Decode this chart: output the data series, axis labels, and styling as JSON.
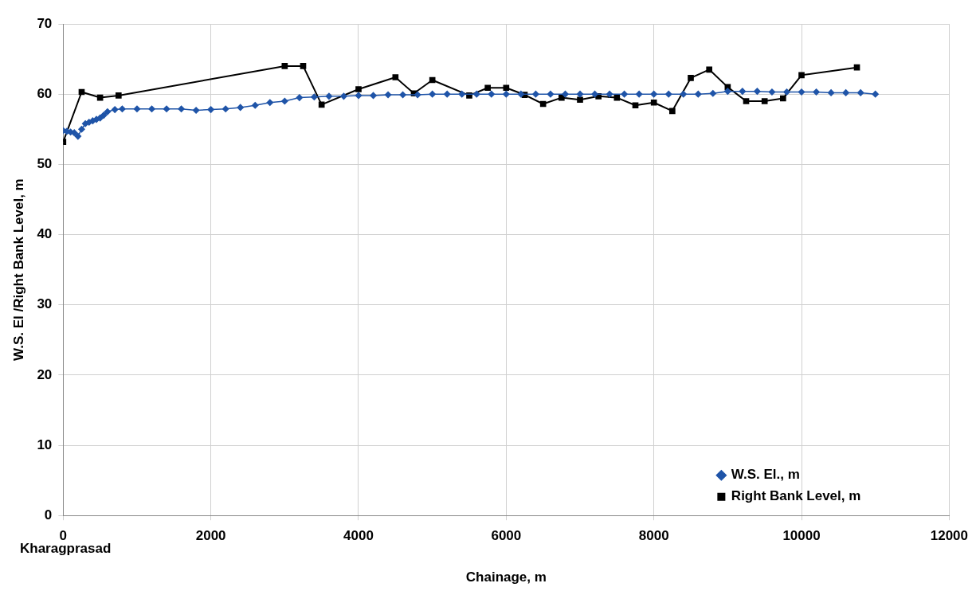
{
  "chart_data": {
    "type": "line",
    "xlabel": "Chainage, m",
    "ylabel": "W.S. El /Right Bank Level, m",
    "xlim": [
      0,
      12000
    ],
    "ylim": [
      0,
      70
    ],
    "xticks": [
      0,
      2000,
      4000,
      6000,
      8000,
      10000,
      12000
    ],
    "yticks": [
      0,
      10,
      20,
      30,
      40,
      50,
      60,
      70
    ],
    "grid": true,
    "legend": "bottom right",
    "annotations": [
      "Kharagprasad"
    ],
    "series": [
      {
        "name": "W.S. El., m",
        "color": "#1f54a8",
        "marker": "diamond",
        "x": [
          0,
          50,
          100,
          150,
          200,
          250,
          300,
          350,
          400,
          450,
          500,
          550,
          600,
          700,
          800,
          1000,
          1200,
          1400,
          1600,
          1800,
          2000,
          2200,
          2400,
          2600,
          2800,
          3000,
          3200,
          3400,
          3600,
          3800,
          4000,
          4200,
          4400,
          4600,
          4800,
          5000,
          5200,
          5400,
          5600,
          5800,
          6000,
          6200,
          6400,
          6600,
          6800,
          7000,
          7200,
          7400,
          7600,
          7800,
          8000,
          8200,
          8400,
          8600,
          8800,
          9000,
          9200,
          9400,
          9600,
          9800,
          10000,
          10200,
          10400,
          10600,
          10800,
          11000
        ],
        "values": [
          54.8,
          54.7,
          54.6,
          54.5,
          54.0,
          55.0,
          55.8,
          56.0,
          56.2,
          56.4,
          56.6,
          57.0,
          57.5,
          57.8,
          57.9,
          57.9,
          57.9,
          57.9,
          57.9,
          57.7,
          57.8,
          57.9,
          58.1,
          58.4,
          58.8,
          59.0,
          59.5,
          59.6,
          59.7,
          59.7,
          59.8,
          59.8,
          59.9,
          59.9,
          59.9,
          60.0,
          60.0,
          60.0,
          60.0,
          60.0,
          60.0,
          60.0,
          60.0,
          60.0,
          60.0,
          60.0,
          60.0,
          60.0,
          60.0,
          60.0,
          60.0,
          60.0,
          60.0,
          60.0,
          60.1,
          60.4,
          60.4,
          60.4,
          60.3,
          60.3,
          60.3,
          60.3,
          60.2,
          60.2,
          60.2,
          60.0
        ]
      },
      {
        "name": "Right Bank Level, m",
        "color": "#000000",
        "marker": "square",
        "x": [
          0,
          250,
          500,
          750,
          3000,
          3250,
          3500,
          4000,
          4500,
          4750,
          5000,
          5500,
          5750,
          6000,
          6250,
          6500,
          6750,
          7000,
          7250,
          7500,
          7750,
          8000,
          8250,
          8500,
          8750,
          9000,
          9250,
          9500,
          9750,
          10000,
          10750
        ],
        "values": [
          53.2,
          60.3,
          59.5,
          59.8,
          64.0,
          64.0,
          58.5,
          60.7,
          62.4,
          60.1,
          62.0,
          59.8,
          60.9,
          60.9,
          59.9,
          58.6,
          59.5,
          59.2,
          59.7,
          59.5,
          58.4,
          58.8,
          57.6,
          62.3,
          63.5,
          61.0,
          59.0,
          59.0,
          59.4,
          62.7,
          63.8
        ]
      }
    ]
  }
}
